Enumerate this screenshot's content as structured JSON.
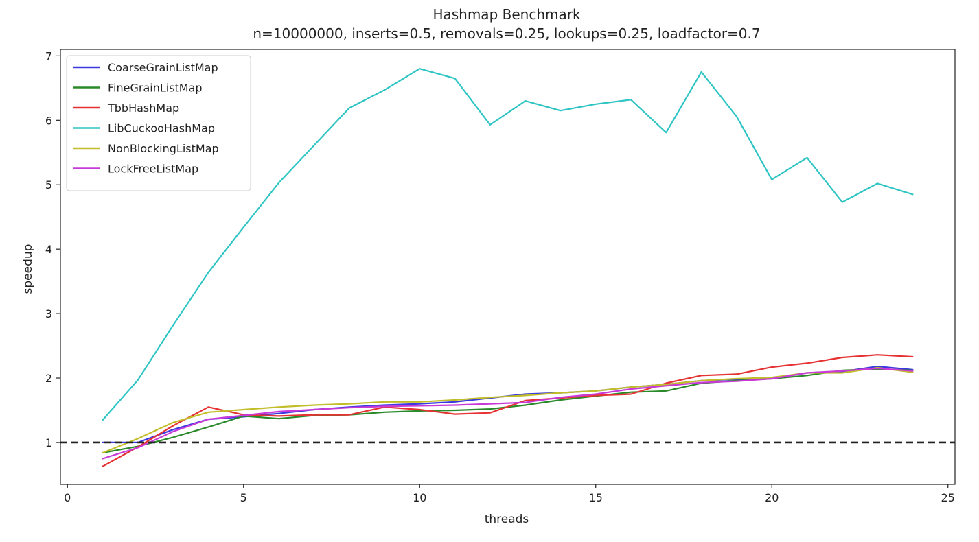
{
  "chart_data": {
    "type": "line",
    "title": "Hashmap Benchmark",
    "subtitle": "n=10000000, inserts=0.5, removals=0.25, lookups=0.25, loadfactor=0.7",
    "xlabel": "threads",
    "ylabel": "speedup",
    "xlim": [
      -0.2,
      25.2
    ],
    "ylim": [
      0.35,
      7.1
    ],
    "xticks": [
      0,
      5,
      10,
      15,
      20,
      25
    ],
    "yticks": [
      1,
      2,
      3,
      4,
      5,
      6,
      7
    ],
    "grid": false,
    "legend_position": "upper-left",
    "reference_line": {
      "y": 1,
      "style": "dashed",
      "color": "#222222"
    },
    "x": [
      1,
      2,
      3,
      4,
      5,
      6,
      7,
      8,
      9,
      10,
      11,
      12,
      13,
      14,
      15,
      16,
      17,
      18,
      19,
      20,
      21,
      22,
      23,
      24
    ],
    "series": [
      {
        "name": "CoarseGrainListMap",
        "color": "#3a3ae0",
        "values": [
          1.0,
          1.0,
          1.2,
          1.36,
          1.4,
          1.45,
          1.51,
          1.55,
          1.58,
          1.6,
          1.63,
          1.69,
          1.75,
          1.77,
          1.8,
          1.86,
          1.9,
          1.96,
          1.98,
          2.0,
          2.08,
          2.1,
          2.18,
          2.13
        ]
      },
      {
        "name": "FineGrainListMap",
        "color": "#2a8a2a",
        "values": [
          0.84,
          0.94,
          1.08,
          1.24,
          1.41,
          1.37,
          1.42,
          1.43,
          1.47,
          1.49,
          1.5,
          1.52,
          1.58,
          1.66,
          1.72,
          1.78,
          1.8,
          1.92,
          1.96,
          1.99,
          2.04,
          2.12,
          2.14,
          2.12
        ]
      },
      {
        "name": "TbbHashMap",
        "color": "#e63232",
        "values": [
          0.63,
          0.93,
          1.26,
          1.55,
          1.43,
          1.41,
          1.43,
          1.43,
          1.55,
          1.51,
          1.44,
          1.46,
          1.65,
          1.69,
          1.73,
          1.75,
          1.92,
          2.04,
          2.06,
          2.17,
          2.23,
          2.32,
          2.36,
          2.33
        ]
      },
      {
        "name": "LibCuckooHashMap",
        "color": "#2ec4c4",
        "values": [
          1.35,
          1.97,
          2.82,
          3.64,
          4.34,
          5.03,
          5.61,
          6.19,
          6.47,
          6.8,
          6.65,
          5.93,
          6.3,
          6.15,
          6.25,
          6.32,
          5.81,
          6.75,
          6.06,
          5.08,
          5.42,
          4.73,
          5.02,
          4.85
        ]
      },
      {
        "name": "NonBlockingListMap",
        "color": "#c2be2a",
        "values": [
          0.84,
          1.06,
          1.31,
          1.47,
          1.51,
          1.55,
          1.58,
          1.6,
          1.63,
          1.63,
          1.66,
          1.7,
          1.73,
          1.77,
          1.8,
          1.86,
          1.9,
          1.96,
          1.99,
          2.01,
          2.08,
          2.08,
          2.16,
          2.09
        ]
      },
      {
        "name": "LockFreeListMap",
        "color": "#c83ad8",
        "values": [
          0.75,
          0.92,
          1.17,
          1.36,
          1.42,
          1.48,
          1.51,
          1.54,
          1.56,
          1.57,
          1.58,
          1.6,
          1.62,
          1.7,
          1.75,
          1.83,
          1.88,
          1.93,
          1.95,
          1.99,
          2.08,
          2.11,
          2.15,
          2.11
        ]
      }
    ]
  }
}
